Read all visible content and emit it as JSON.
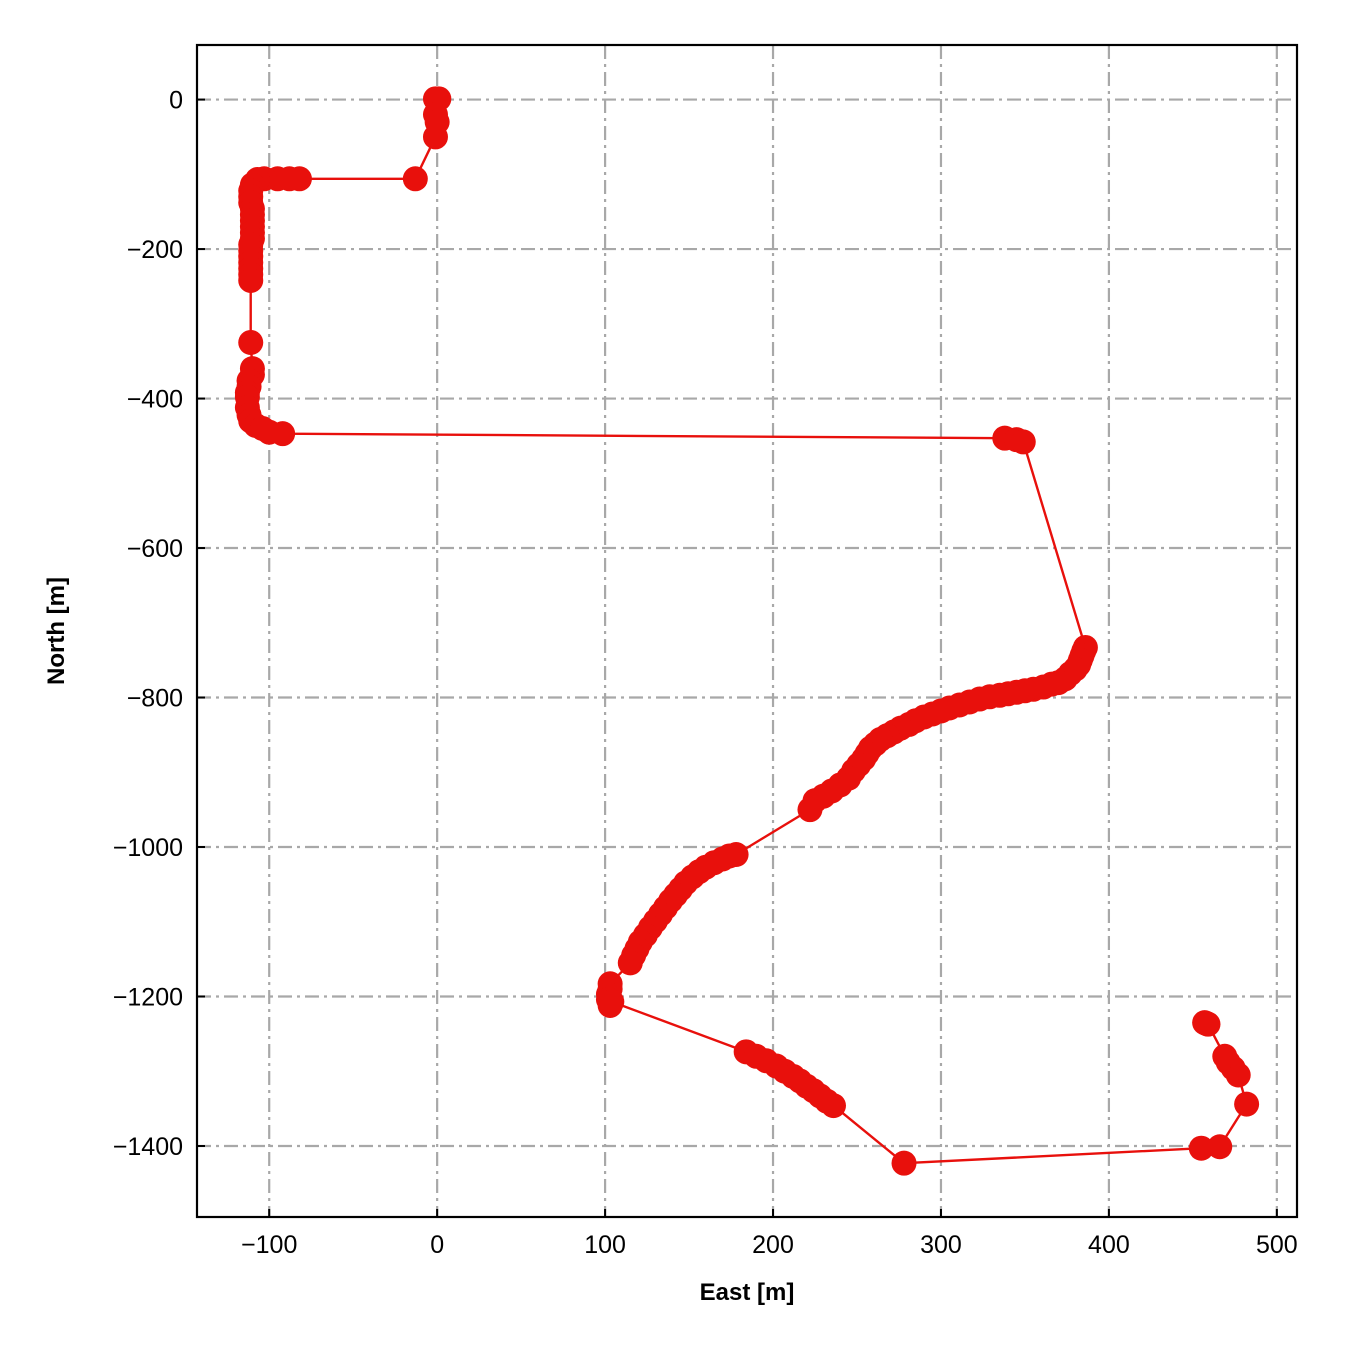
{
  "chart_data": {
    "type": "line",
    "xlabel": "East [m]",
    "ylabel": "North [m]",
    "xlim": [
      -143,
      512
    ],
    "ylim": [
      -1495,
      73
    ],
    "xticks": [
      -100,
      0,
      100,
      200,
      300,
      400,
      500
    ],
    "yticks": [
      0,
      -200,
      -400,
      -600,
      -800,
      -1000,
      -1200,
      -1400
    ],
    "xtick_labels": [
      "−100",
      "0",
      "100",
      "200",
      "300",
      "400",
      "500"
    ],
    "ytick_labels": [
      "0",
      "−200",
      "−400",
      "−600",
      "−800",
      "−1000",
      "−1200",
      "−1400"
    ],
    "grid": true,
    "legend": "none",
    "series": [
      {
        "color": "#e8100c",
        "marker": "circle",
        "x": [
          1,
          -1,
          -1,
          0,
          -1,
          -13,
          -82,
          -88,
          -95,
          -103,
          -107,
          -110,
          -111,
          -111,
          -111,
          -110,
          -110,
          -110,
          -110,
          -110,
          -110,
          -111,
          -111,
          -111,
          -111,
          -111,
          -111,
          -111,
          -111,
          -110,
          -110,
          -112,
          -112,
          -113,
          -113,
          -113,
          -112,
          -111,
          -108,
          -104,
          -100,
          -92,
          338,
          345,
          349,
          386,
          385,
          384,
          383,
          382,
          380,
          377,
          374,
          370,
          366,
          361,
          355,
          350,
          345,
          340,
          335,
          329,
          323,
          317,
          311,
          305,
          300,
          295,
          290,
          285,
          281,
          276,
          272,
          268,
          264,
          261,
          258,
          256,
          254,
          251,
          248,
          245,
          240,
          235,
          230,
          225,
          222,
          178,
          174,
          170,
          165,
          160,
          156,
          152,
          148,
          145,
          142,
          139,
          136,
          133,
          130,
          127,
          124,
          121,
          119,
          117,
          115,
          103,
          103,
          102,
          102,
          103,
          104,
          184,
          190,
          196,
          202,
          207,
          212,
          216,
          220,
          224,
          228,
          232,
          236,
          278,
          455,
          466,
          482,
          477,
          474,
          471,
          469,
          459,
          458,
          457
        ],
        "y": [
          1,
          1,
          -20,
          -30,
          -50,
          -106,
          -106,
          -106,
          -106,
          -106,
          -107,
          -114,
          -122,
          -130,
          -138,
          -146,
          -154,
          -162,
          -170,
          -178,
          -186,
          -194,
          -202,
          -210,
          -218,
          -226,
          -234,
          -242,
          -325,
          -360,
          -368,
          -376,
          -384,
          -392,
          -398,
          -412,
          -422,
          -430,
          -436,
          -440,
          -445,
          -447,
          -453,
          -455,
          -458,
          -733,
          -738,
          -744,
          -750,
          -756,
          -762,
          -768,
          -775,
          -780,
          -782,
          -786,
          -789,
          -791,
          -793,
          -795,
          -797,
          -799,
          -802,
          -806,
          -810,
          -814,
          -818,
          -822,
          -826,
          -831,
          -836,
          -841,
          -846,
          -851,
          -856,
          -862,
          -868,
          -875,
          -882,
          -890,
          -898,
          -908,
          -917,
          -925,
          -932,
          -938,
          -950,
          -1010,
          -1012,
          -1016,
          -1021,
          -1027,
          -1033,
          -1040,
          -1048,
          -1056,
          -1064,
          -1072,
          -1081,
          -1090,
          -1099,
          -1108,
          -1118,
          -1127,
          -1136,
          -1145,
          -1155,
          -1183,
          -1190,
          -1197,
          -1204,
          -1212,
          -1207,
          -1274,
          -1280,
          -1286,
          -1293,
          -1300,
          -1307,
          -1313,
          -1320,
          -1326,
          -1333,
          -1340,
          -1346,
          -1423,
          -1403,
          -1401,
          -1344,
          -1305,
          -1296,
          -1288,
          -1280,
          -1237,
          -1236,
          -1235
        ]
      }
    ]
  }
}
